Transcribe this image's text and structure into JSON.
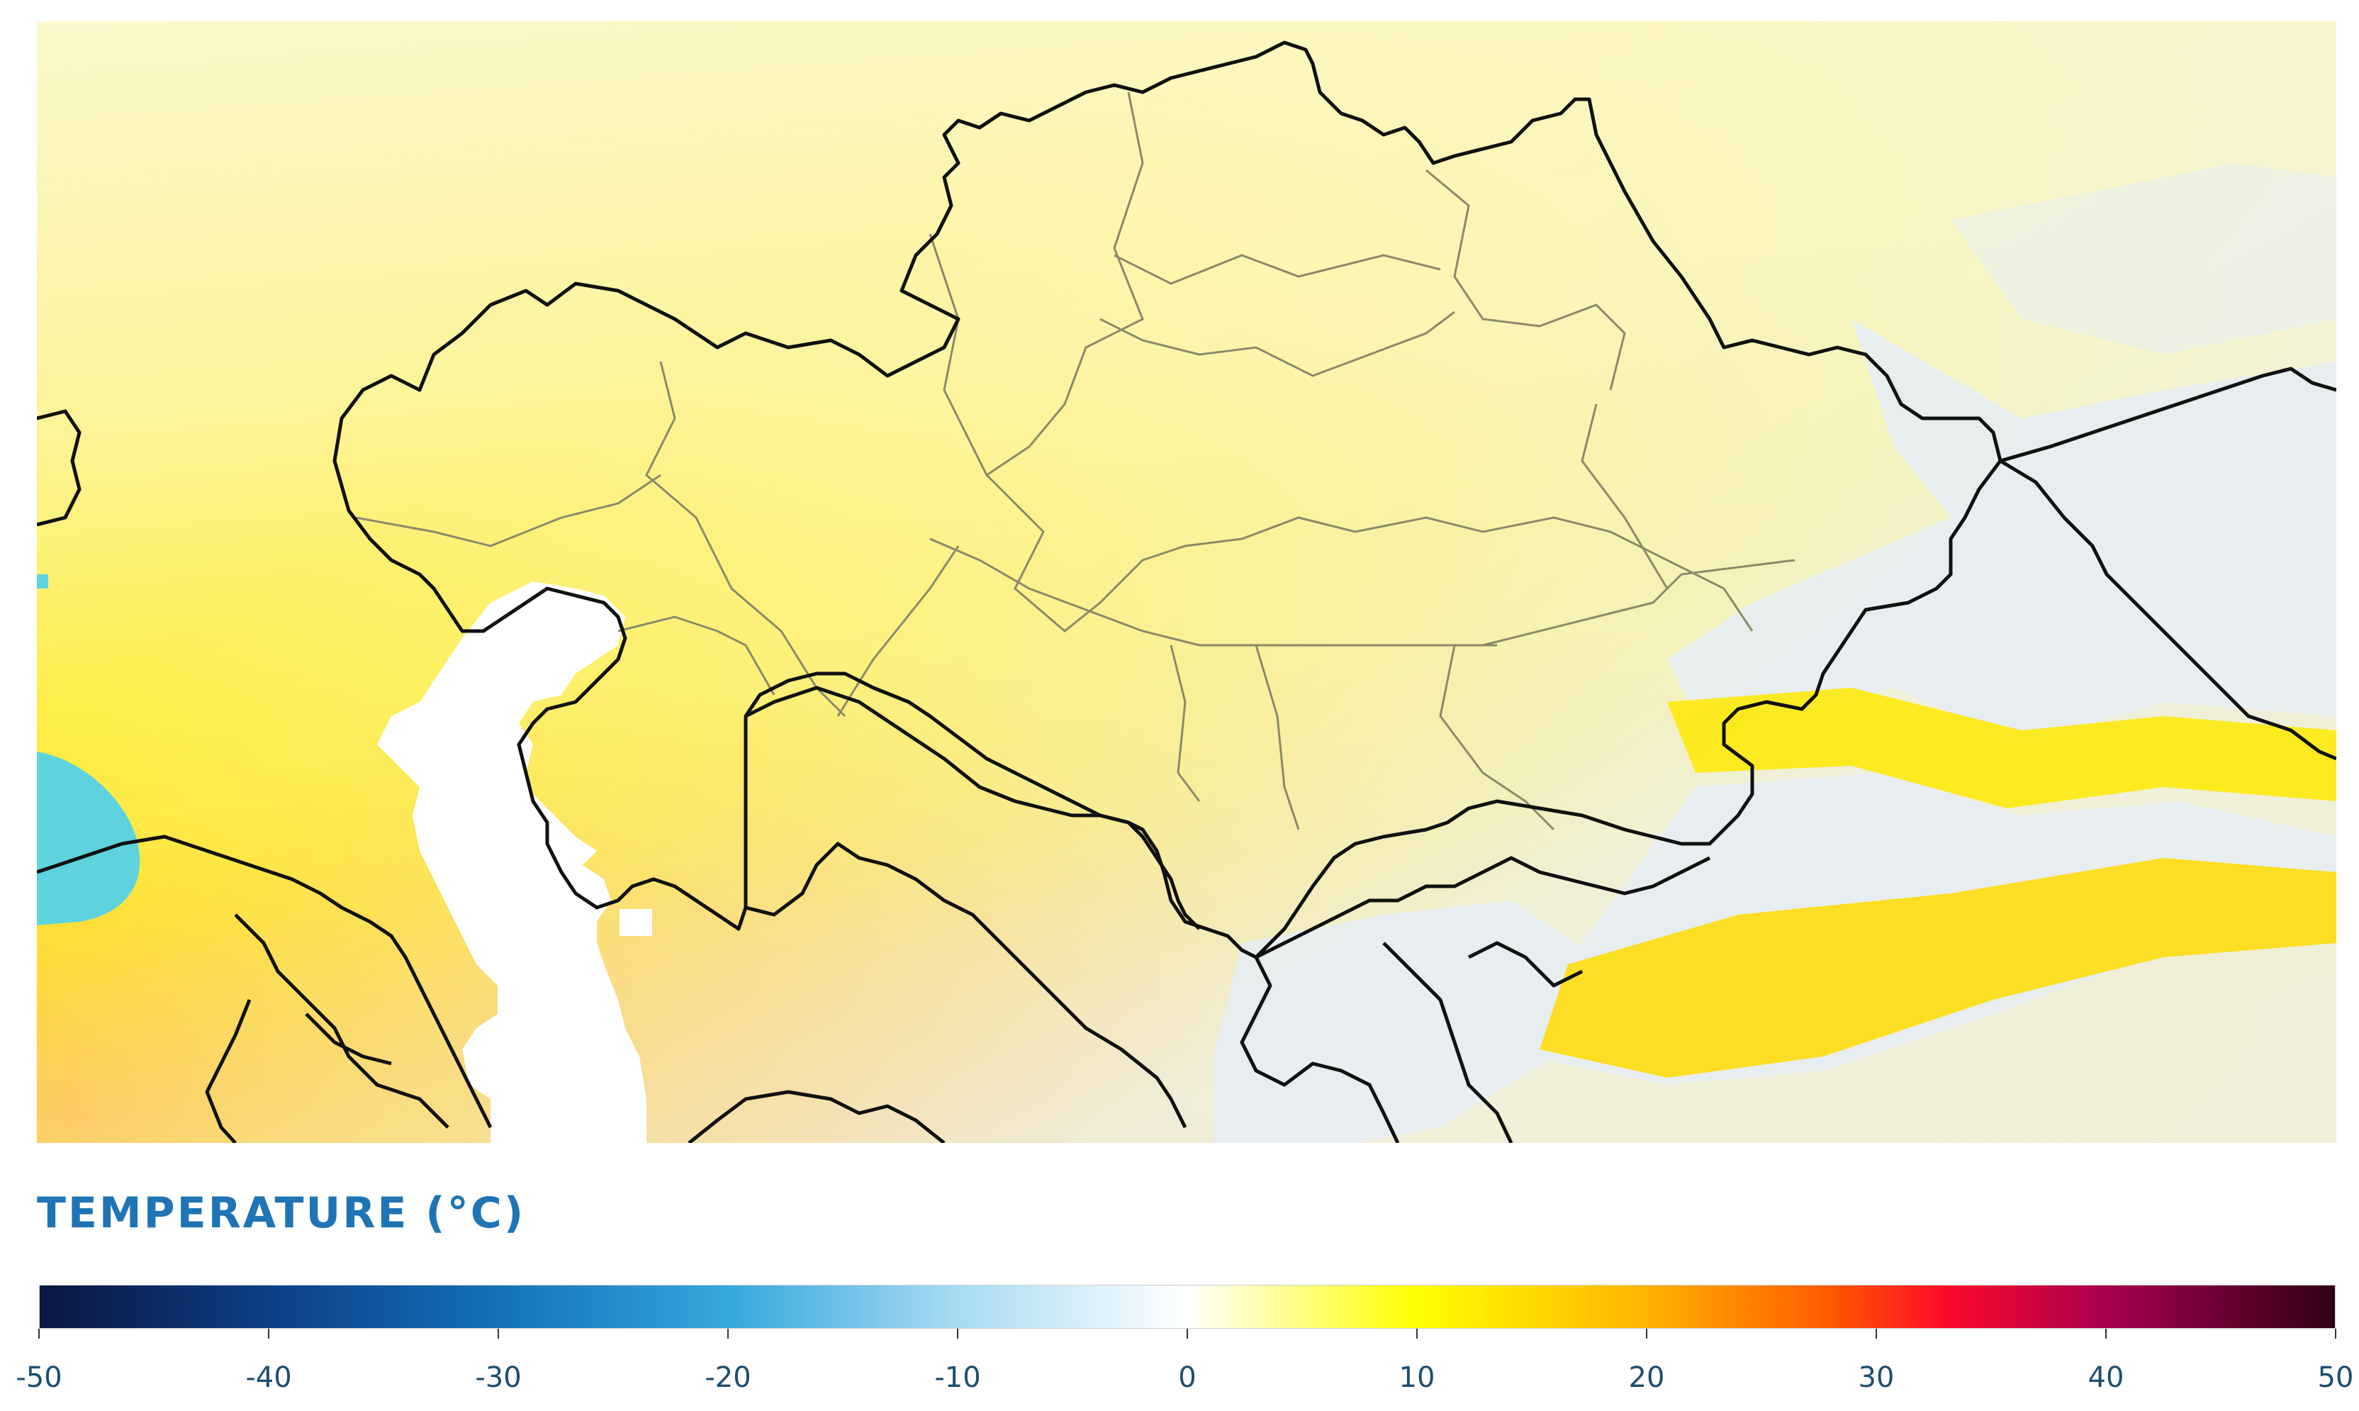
{
  "legend": {
    "title": "TEMPERATURE (°C)",
    "min": -50,
    "max": 50,
    "ticks": [
      {
        "value": -50,
        "label": "-50"
      },
      {
        "value": -40,
        "label": "-40"
      },
      {
        "value": -30,
        "label": "-30"
      },
      {
        "value": -20,
        "label": "-20"
      },
      {
        "value": -10,
        "label": "-10"
      },
      {
        "value": 0,
        "label": "0"
      },
      {
        "value": 10,
        "label": "10"
      },
      {
        "value": 20,
        "label": "20"
      },
      {
        "value": 30,
        "label": "30"
      },
      {
        "value": 40,
        "label": "40"
      },
      {
        "value": 50,
        "label": "50"
      }
    ],
    "color_stops": [
      {
        "value": -50,
        "color": "#0b1640"
      },
      {
        "value": -40,
        "color": "#0d3f86"
      },
      {
        "value": -30,
        "color": "#1372b8"
      },
      {
        "value": -20,
        "color": "#35a8dc"
      },
      {
        "value": -10,
        "color": "#a7dbf2"
      },
      {
        "value": 0,
        "color": "#ffffff"
      },
      {
        "value": 10,
        "color": "#ffff00"
      },
      {
        "value": 20,
        "color": "#ffb400"
      },
      {
        "value": 28,
        "color": "#ff5a00"
      },
      {
        "value": 33,
        "color": "#ff0a2a"
      },
      {
        "value": 40,
        "color": "#a8004e"
      },
      {
        "value": 50,
        "color": "#300016"
      }
    ]
  },
  "map": {
    "colors": {
      "cool_north": "#fbf7c8",
      "mild": "#fdf58a",
      "warm": "#ffe500",
      "hot": "#ffb81a",
      "water": "#ffffff",
      "black_sea": "#5fd3dc",
      "mountains": "#e8eef2",
      "country_border": "#111111",
      "region_border": "#8a8a6a"
    }
  }
}
